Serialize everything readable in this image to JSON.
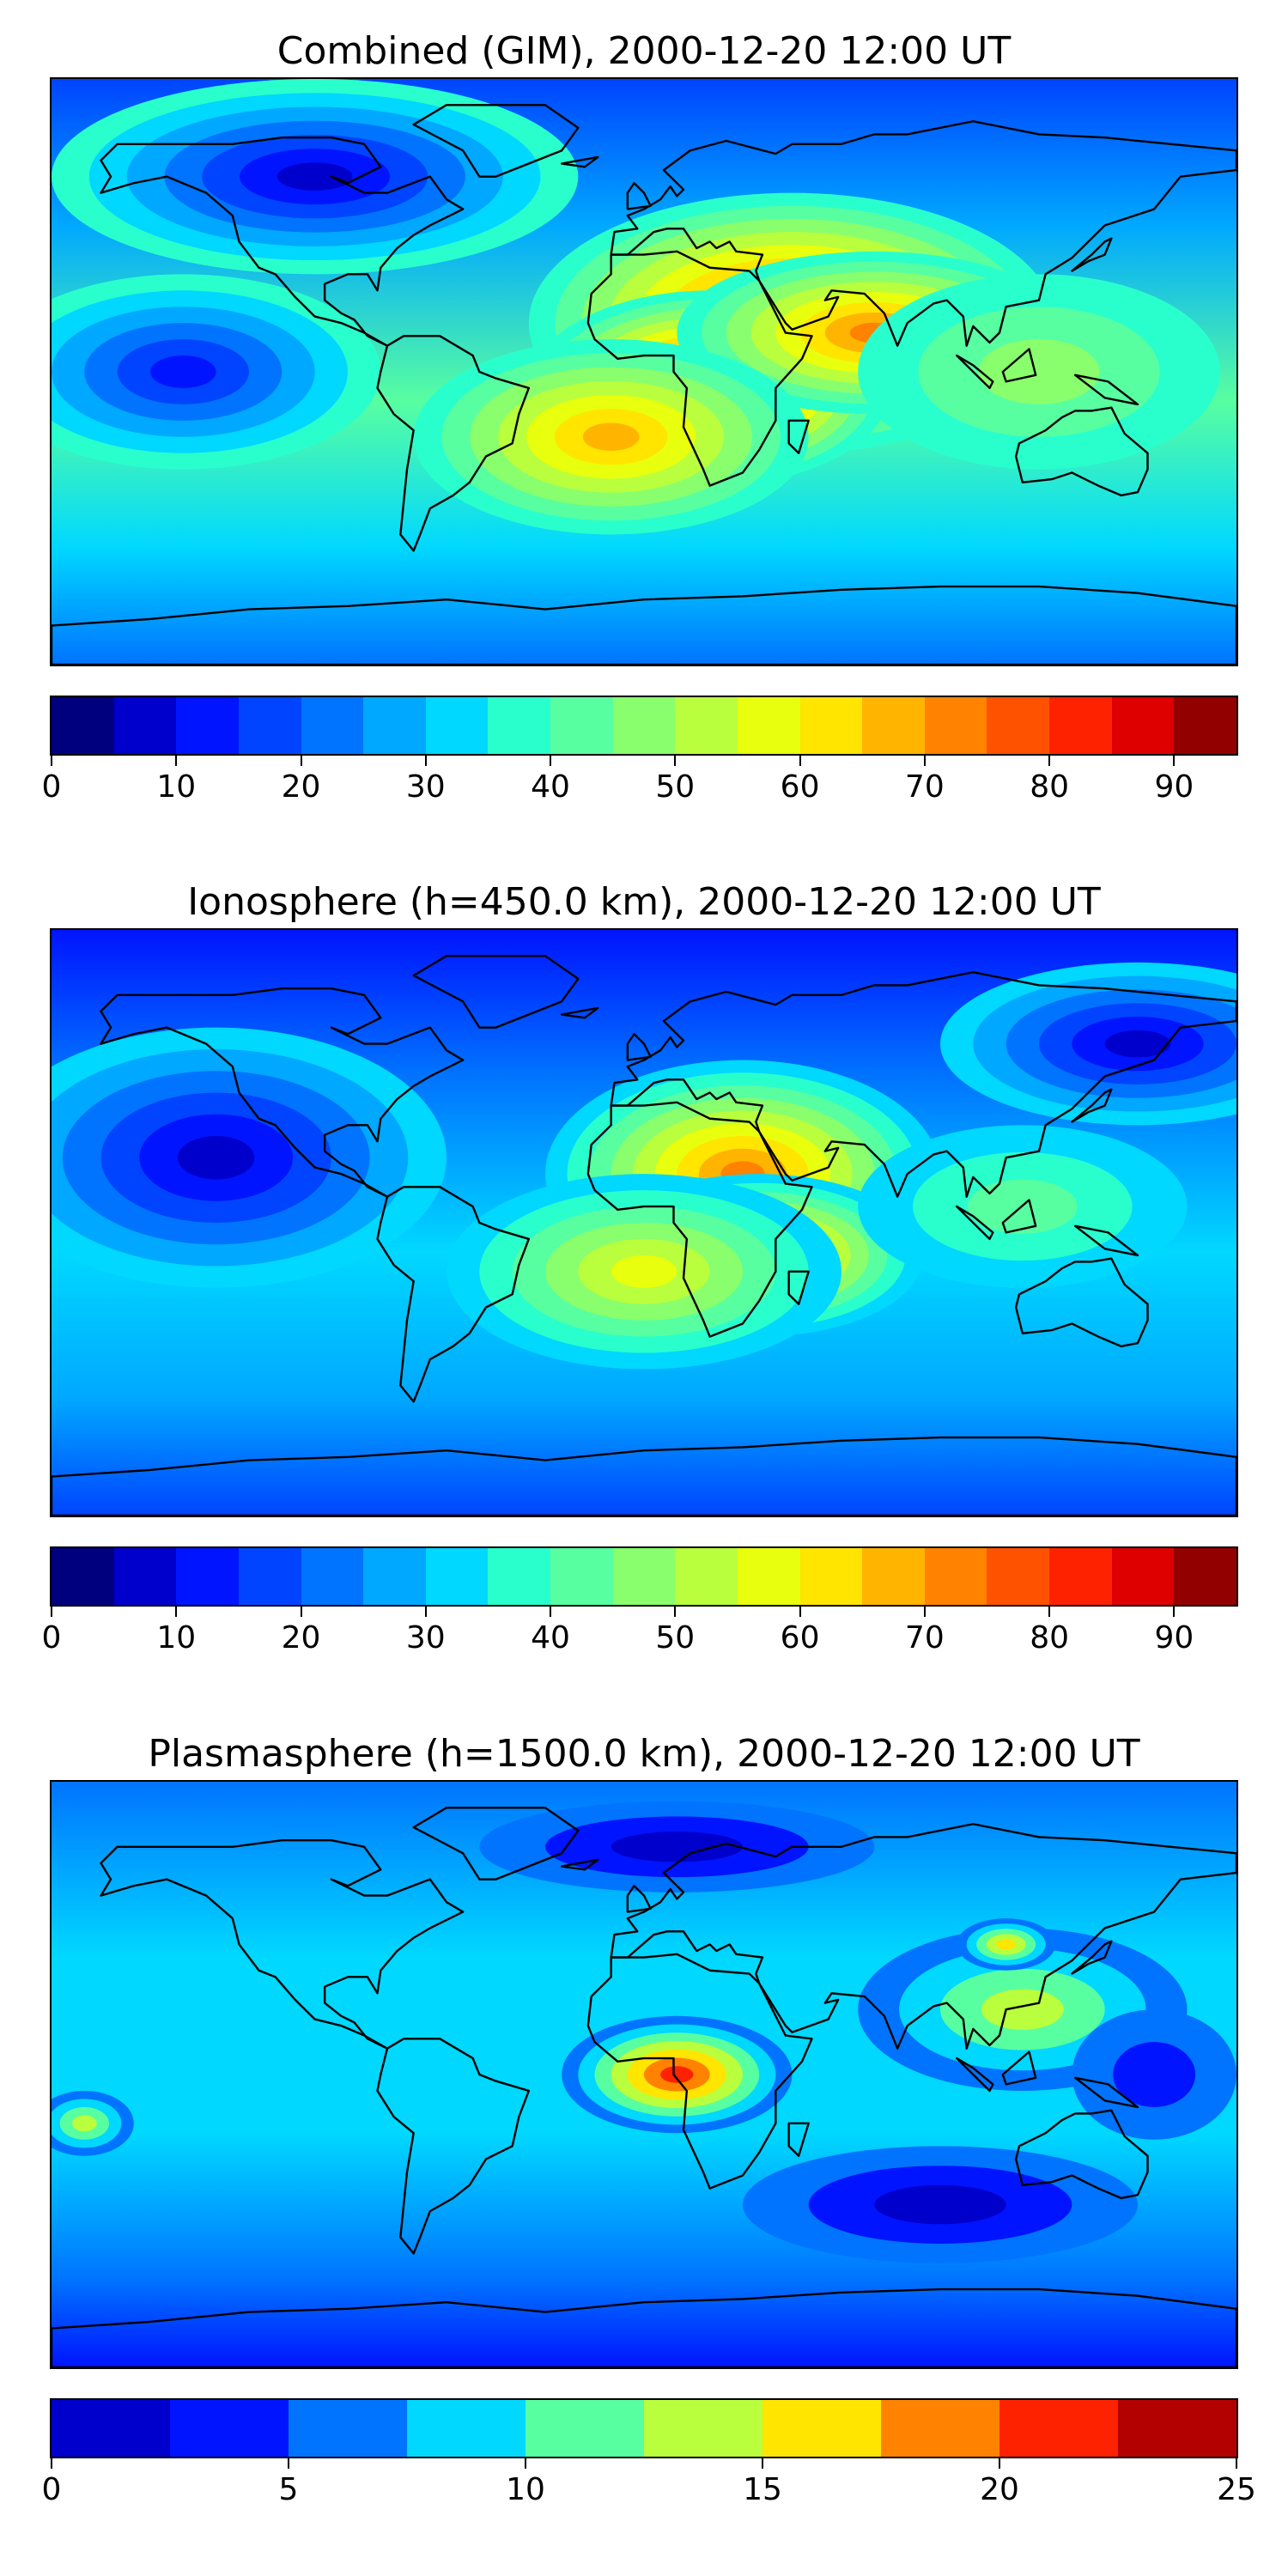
{
  "chart_data": [
    {
      "type": "heatmap",
      "title": "Combined (GIM), 2000-12-20 12:00 UT",
      "colorbar": {
        "levels": [
          0,
          5,
          10,
          15,
          20,
          25,
          30,
          35,
          40,
          45,
          50,
          55,
          60,
          65,
          70,
          75,
          80,
          85,
          90,
          95
        ],
        "tick_values": [
          0,
          10,
          20,
          30,
          40,
          50,
          60,
          70,
          80,
          90
        ],
        "tick_labels": [
          "0",
          "10",
          "20",
          "30",
          "40",
          "50",
          "60",
          "70",
          "80",
          "90"
        ],
        "colors": [
          "#00007f",
          "#0000cc",
          "#0014ff",
          "#0044ff",
          "#0074ff",
          "#00a8ff",
          "#00d8ff",
          "#29ffcd",
          "#58ffa0",
          "#89ff6d",
          "#b9ff3d",
          "#e8ff0d",
          "#ffe500",
          "#ffb400",
          "#ff8200",
          "#ff5200",
          "#ff2200",
          "#de0000",
          "#930000"
        ]
      },
      "features": [
        {
          "lon": 45,
          "lat": 15,
          "value": 84,
          "rx": 80,
          "ry": 40
        },
        {
          "lon": 20,
          "lat": -5,
          "value": 85,
          "rx": 55,
          "ry": 30
        },
        {
          "lon": 70,
          "lat": 12,
          "value": 72,
          "rx": 60,
          "ry": 25
        },
        {
          "lon": -10,
          "lat": -20,
          "value": 66,
          "rx": 60,
          "ry": 30
        },
        {
          "lon": 120,
          "lat": 0,
          "value": 45,
          "rx": 55,
          "ry": 30
        },
        {
          "lon": -140,
          "lat": 0,
          "value": 12,
          "rx": 60,
          "ry": 30
        },
        {
          "lon": -100,
          "lat": 60,
          "value": 8,
          "rx": 80,
          "ry": 30
        }
      ]
    },
    {
      "type": "heatmap",
      "title": "Ionosphere  (h=450.0 km), 2000-12-20 12:00 UT",
      "colorbar": {
        "levels": [
          0,
          5,
          10,
          15,
          20,
          25,
          30,
          35,
          40,
          45,
          50,
          55,
          60,
          65,
          70,
          75,
          80,
          85,
          90,
          95
        ],
        "tick_values": [
          0,
          10,
          20,
          30,
          40,
          50,
          60,
          70,
          80,
          90
        ],
        "tick_labels": [
          "0",
          "10",
          "20",
          "30",
          "40",
          "50",
          "60",
          "70",
          "80",
          "90"
        ],
        "colors": [
          "#00007f",
          "#0000cc",
          "#0014ff",
          "#0044ff",
          "#0074ff",
          "#00a8ff",
          "#00d8ff",
          "#29ffcd",
          "#58ffa0",
          "#89ff6d",
          "#b9ff3d",
          "#e8ff0d",
          "#ffe500",
          "#ffb400",
          "#ff8200",
          "#ff5200",
          "#ff2200",
          "#de0000",
          "#930000"
        ]
      },
      "features": [
        {
          "lon": 30,
          "lat": 15,
          "value": 72,
          "rx": 60,
          "ry": 35
        },
        {
          "lon": 35,
          "lat": -10,
          "value": 73,
          "rx": 50,
          "ry": 25
        },
        {
          "lon": 0,
          "lat": -15,
          "value": 58,
          "rx": 60,
          "ry": 30
        },
        {
          "lon": 115,
          "lat": 5,
          "value": 40,
          "rx": 50,
          "ry": 25
        },
        {
          "lon": -130,
          "lat": 20,
          "value": 5,
          "rx": 70,
          "ry": 40
        },
        {
          "lon": 150,
          "lat": 55,
          "value": 8,
          "rx": 60,
          "ry": 25
        }
      ]
    },
    {
      "type": "heatmap",
      "title": "Plasmasphere (h=1500.0 km), 2000-12-20 12:00 UT",
      "colorbar": {
        "levels": [
          0,
          2.5,
          5,
          7.5,
          10,
          12.5,
          15,
          17.5,
          20,
          22.5,
          25
        ],
        "tick_values": [
          0,
          5,
          10,
          15,
          20,
          25
        ],
        "tick_labels": [
          "0",
          "5",
          "10",
          "15",
          "20",
          "25"
        ],
        "colors": [
          "#0000cc",
          "#0014ff",
          "#0074ff",
          "#00d8ff",
          "#58ffa0",
          "#b9ff3d",
          "#ffe500",
          "#ff8200",
          "#ff2200",
          "#b30000"
        ]
      },
      "features": [
        {
          "lon": 10,
          "lat": 0,
          "value": 21,
          "rx": 35,
          "ry": 18
        },
        {
          "lon": 115,
          "lat": 20,
          "value": 14,
          "rx": 50,
          "ry": 25
        },
        {
          "lon": 110,
          "lat": 40,
          "value": 16,
          "rx": 15,
          "ry": 8
        },
        {
          "lon": -170,
          "lat": -15,
          "value": 13,
          "rx": 15,
          "ry": 10
        },
        {
          "lon": 90,
          "lat": -40,
          "value": 1,
          "rx": 60,
          "ry": 18
        },
        {
          "lon": 10,
          "lat": 70,
          "value": 1,
          "rx": 60,
          "ry": 14
        },
        {
          "lon": 155,
          "lat": 0,
          "value": 4,
          "rx": 25,
          "ry": 20
        }
      ]
    }
  ]
}
